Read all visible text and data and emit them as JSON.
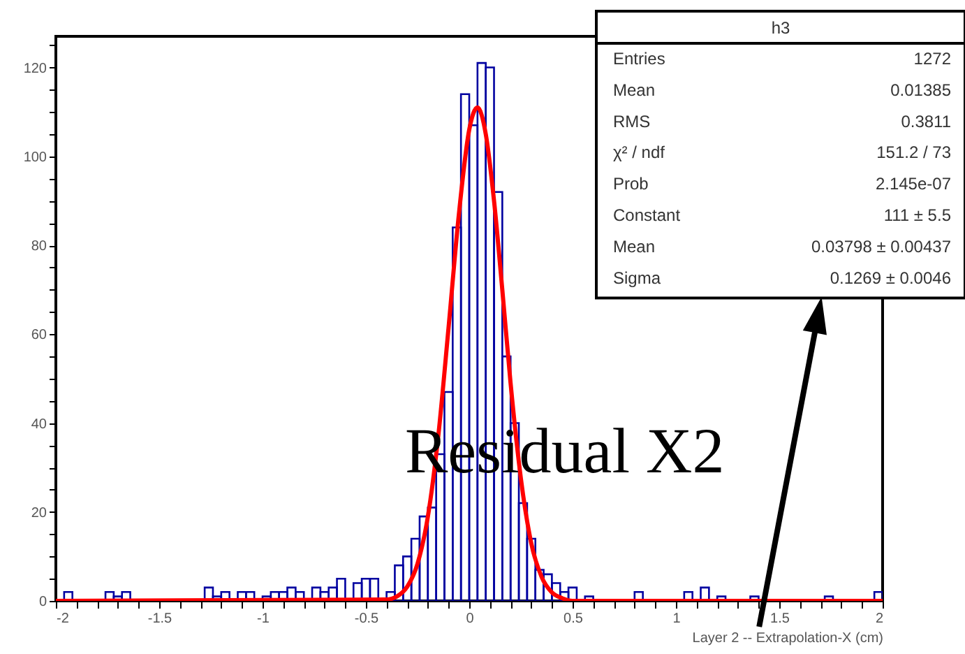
{
  "chart_data": {
    "type": "histogram",
    "xlabel": "Layer 2 --  Extrapolation-X (cm)",
    "bins": [
      -2,
      -1.96,
      -1.92,
      -1.88,
      -1.84,
      -1.8,
      -1.76,
      -1.72,
      -1.68,
      -1.64,
      -1.6,
      -1.56,
      -1.52,
      -1.48,
      -1.44,
      -1.4,
      -1.36,
      -1.32,
      -1.28,
      -1.24,
      -1.2,
      -1.16,
      -1.12,
      -1.08,
      -1.04,
      -1,
      -0.96,
      -0.92,
      -0.88,
      -0.84,
      -0.8,
      -0.76,
      -0.72,
      -0.68,
      -0.64,
      -0.6,
      -0.56,
      -0.52,
      -0.48,
      -0.44,
      -0.4,
      -0.36,
      -0.32,
      -0.28,
      -0.24,
      -0.2,
      -0.16,
      -0.12,
      -0.08,
      -0.04,
      0,
      0.04,
      0.08,
      0.12,
      0.16,
      0.2,
      0.24,
      0.28,
      0.32,
      0.36,
      0.4,
      0.44,
      0.48,
      0.52,
      0.56,
      0.6,
      0.64,
      0.68,
      0.72,
      0.76,
      0.8,
      0.84,
      0.88,
      0.92,
      0.96,
      1,
      1.04,
      1.08,
      1.12,
      1.16,
      1.2,
      1.24,
      1.28,
      1.32,
      1.36,
      1.4,
      1.44,
      1.48,
      1.52,
      1.56,
      1.6,
      1.64,
      1.68,
      1.72,
      1.76,
      1.8,
      1.84,
      1.88,
      1.92,
      1.96,
      2
    ],
    "series": [
      {
        "color": "#0000a0",
        "values": [
          0,
          2,
          0,
          0,
          0,
          0,
          2,
          1,
          2,
          0,
          0,
          0,
          0,
          0,
          0,
          0,
          0,
          0,
          3,
          1,
          2,
          0,
          2,
          2,
          0,
          1,
          2,
          2,
          3,
          2,
          0,
          3,
          2,
          3,
          5,
          0,
          4,
          5,
          5,
          0,
          2,
          8,
          10,
          14,
          19,
          21,
          33,
          47,
          84,
          114,
          107,
          121,
          120,
          92,
          55,
          40,
          22,
          14,
          7,
          6,
          4,
          2,
          3,
          0,
          1,
          0,
          0,
          0,
          0,
          0,
          2,
          0,
          0,
          0,
          0,
          0,
          2,
          0,
          3,
          0,
          1,
          0,
          0,
          0,
          1,
          0,
          0,
          0,
          0,
          0,
          0,
          0,
          0,
          1,
          0,
          0,
          0,
          0,
          0,
          2
        ]
      },
      {
        "type": "line",
        "color": "#ff0000",
        "x": [
          -2,
          -0.4,
          -0.35,
          -0.3,
          -0.25,
          -0.2,
          -0.15,
          -0.1,
          -0.05,
          0,
          0.04,
          0.08,
          0.12,
          0.16,
          0.2,
          0.25,
          0.3,
          0.35,
          0.4,
          0.45,
          0.5,
          2
        ],
        "values": [
          0,
          0.3,
          1,
          3.2,
          8.4,
          19,
          37,
          61.5,
          87,
          106,
          111,
          105,
          90,
          70,
          49,
          27.5,
          13,
          5.4,
          1.9,
          0.6,
          0,
          0
        ]
      }
    ],
    "xlim": [
      -2,
      2
    ],
    "xticks": [
      -2,
      {
        "value": -1.9,
        "label": null
      },
      {
        "value": -1.8,
        "label": null
      },
      {
        "value": -1.7,
        "label": null
      },
      {
        "value": -1.6,
        "label": null
      },
      -1.5,
      {
        "value": -1.4,
        "label": null
      },
      {
        "value": -1.3,
        "label": null
      },
      {
        "value": -1.2,
        "label": null
      },
      {
        "value": -1.1,
        "label": null
      },
      -1,
      {
        "value": -0.9,
        "label": null
      },
      {
        "value": -0.8,
        "label": null
      },
      {
        "value": -0.7,
        "label": null
      },
      {
        "value": -0.6,
        "label": null
      },
      -0.5,
      {
        "value": -0.4,
        "label": null
      },
      {
        "value": -0.3,
        "label": null
      },
      {
        "value": -0.2,
        "label": null
      },
      {
        "value": -0.1,
        "label": null
      },
      0,
      {
        "value": 0.1,
        "label": null
      },
      {
        "value": 0.2,
        "label": null
      },
      {
        "value": 0.3,
        "label": null
      },
      {
        "value": 0.4,
        "label": null
      },
      0.5,
      {
        "value": 0.6,
        "label": null
      },
      {
        "value": 0.7,
        "label": null
      },
      {
        "value": 0.8,
        "label": null
      },
      {
        "value": 0.9,
        "label": null
      },
      1,
      {
        "value": 1.1,
        "label": null
      },
      {
        "value": 1.2,
        "label": null
      },
      {
        "value": 1.3,
        "label": null
      },
      {
        "value": 1.4,
        "label": null
      },
      1.5,
      {
        "value": 1.6,
        "label": null
      },
      {
        "value": 1.7,
        "label": null
      },
      {
        "value": 1.8,
        "label": null
      },
      {
        "value": 1.9,
        "label": null
      },
      2
    ],
    "ylim": [
      0,
      127
    ],
    "yticks": [
      0,
      {
        "value": 5,
        "label": null
      },
      {
        "value": 10,
        "label": null
      },
      {
        "value": 15,
        "label": null
      },
      20,
      {
        "value": 25,
        "label": null
      },
      {
        "value": 30,
        "label": null
      },
      {
        "value": 35,
        "label": null
      },
      40,
      {
        "value": 45,
        "label": null
      },
      {
        "value": 50,
        "label": null
      },
      {
        "value": 55,
        "label": null
      },
      60,
      {
        "value": 65,
        "label": null
      },
      {
        "value": 70,
        "label": null
      },
      {
        "value": 75,
        "label": null
      },
      80,
      {
        "value": 85,
        "label": null
      },
      {
        "value": 90,
        "label": null
      },
      {
        "value": 95,
        "label": null
      },
      100,
      {
        "value": 105,
        "label": null
      },
      {
        "value": 110,
        "label": null
      },
      {
        "value": 115,
        "label": null
      },
      120,
      {
        "value": 125,
        "label": null
      }
    ],
    "grid": false,
    "annotations": [
      "h3",
      "Entries",
      "1272",
      "Mean",
      "0.01385",
      "RMS",
      "0.3811",
      "χ² / ndf",
      "151.2 / 73",
      "Prob",
      "2.145e-07",
      "Constant",
      "111 ± 5.5",
      "Mean",
      "0.03798 ± 0.00437",
      "Sigma",
      "0.1269 ± 0.0046",
      "Residual X2"
    ]
  }
}
